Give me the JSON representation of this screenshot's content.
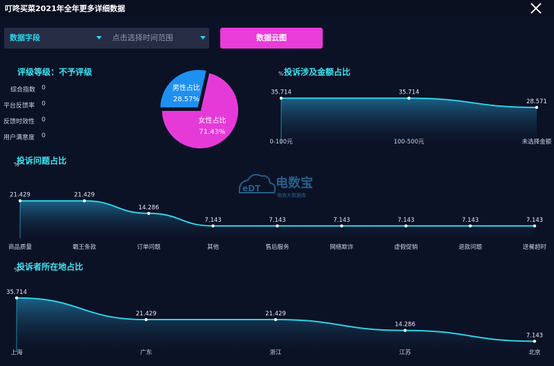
{
  "window": {
    "title": "叮咚买菜2021年全年更多详细数据"
  },
  "filters": {
    "field_label": "数据字段",
    "date_placeholder": "点击选择时间范围",
    "cloud_button": "数据云图"
  },
  "rating": {
    "title": "评级等级：不予评级",
    "items": [
      {
        "label": "综合指数",
        "value": "0"
      },
      {
        "label": "平台反馈率",
        "value": "0"
      },
      {
        "label": "反馈时效性",
        "value": "0"
      },
      {
        "label": "用户满意度",
        "value": "0"
      }
    ]
  },
  "watermark": {
    "brand": "电数宝",
    "sub": "电商大数据库",
    "logo": "eDT"
  },
  "chart_data": [
    {
      "type": "pie",
      "title": "",
      "slices": [
        {
          "label": "男性占比",
          "value": 28.57,
          "display": "28.57%",
          "color": "#1e90f0"
        },
        {
          "label": "女性占比",
          "value": 71.43,
          "display": "71.43%",
          "color": "#e63ad8"
        }
      ]
    },
    {
      "type": "area",
      "title": "投诉涉及金额占比",
      "ylabel": "%",
      "categories": [
        "0-100元",
        "100-500元",
        "未选择金额"
      ],
      "values": [
        35.714,
        35.714,
        28.571
      ],
      "labels": [
        "35.714",
        "35.714",
        "28.571"
      ],
      "color": "#2fd3e8"
    },
    {
      "type": "area",
      "title": "投诉问题占比",
      "ylabel": "%",
      "categories": [
        "商品质量",
        "霸王条款",
        "订单问题",
        "其他",
        "售后服务",
        "网络欺诈",
        "虚假促销",
        "退款问题",
        "送餐超时"
      ],
      "values": [
        21.429,
        21.429,
        14.286,
        7.143,
        7.143,
        7.143,
        7.143,
        7.143,
        7.143
      ],
      "labels": [
        "21.429",
        "21.429",
        "14.286",
        "7.143",
        "7.143",
        "7.143",
        "7.143",
        "7.143",
        "7.143"
      ],
      "color": "#2fd3e8"
    },
    {
      "type": "area",
      "title": "投诉者所在地占比",
      "ylabel": "%",
      "categories": [
        "上海",
        "广东",
        "浙江",
        "江苏",
        "北京"
      ],
      "values": [
        35.714,
        21.429,
        21.429,
        14.286,
        7.143
      ],
      "labels": [
        "35.714",
        "21.429",
        "21.429",
        "14.286",
        "7.143"
      ],
      "color": "#2fd3e8"
    }
  ]
}
